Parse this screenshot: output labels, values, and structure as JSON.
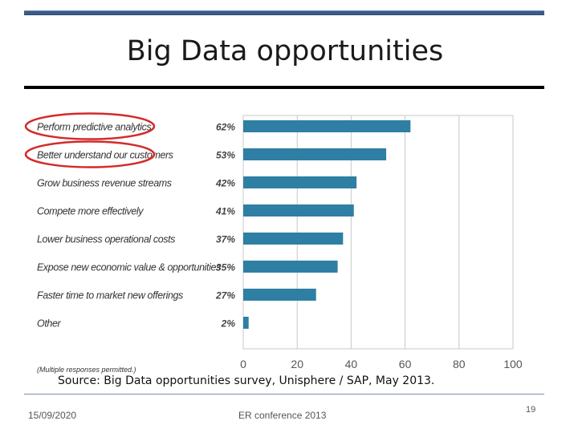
{
  "slide": {
    "title": "Big Data opportunities",
    "source": "Source: Big Data opportunities survey, Unisphere / SAP, May 2013.",
    "footer_date": "15/09/2020",
    "footer_center": "ER conference 2013",
    "page_number": "19"
  },
  "chart_data": {
    "type": "bar",
    "orientation": "horizontal",
    "categories": [
      "Perform predictive analytics",
      "Better understand our customers",
      "Grow business revenue streams",
      "Compete more effectively",
      "Lower business operational costs",
      "Expose new economic value & opportunities",
      "Faster time to market new offerings",
      "Other"
    ],
    "values": [
      62,
      53,
      42,
      41,
      37,
      35,
      27,
      2
    ],
    "value_labels": [
      "62%",
      "53%",
      "42%",
      "41%",
      "37%",
      "35%",
      "27%",
      "2%"
    ],
    "xlim": [
      0,
      100
    ],
    "xticks": [
      0,
      20,
      40,
      60,
      80,
      100
    ],
    "grid": true,
    "note": "(Multiple responses permitted.)",
    "highlighted": [
      "Perform predictive analytics",
      "Better understand our customers"
    ],
    "colors": {
      "bar": "#2e7fa3",
      "highlight": "#d42a2a",
      "grid": "#c8c8c8"
    }
  }
}
